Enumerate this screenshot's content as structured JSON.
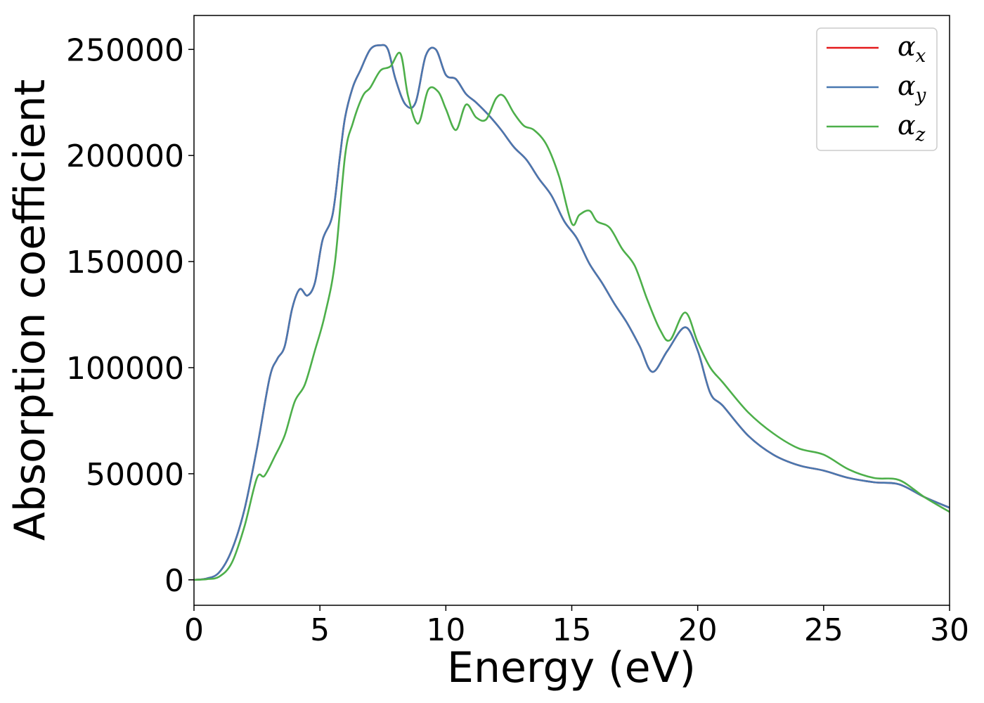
{
  "chart_data": {
    "type": "line",
    "title": "",
    "xlabel": "Energy (eV)",
    "ylabel": "Absorption coefficient",
    "xlim": [
      0,
      30
    ],
    "ylim": [
      -12000,
      266000
    ],
    "xticks": [
      0,
      5,
      10,
      15,
      20,
      25,
      30
    ],
    "xtick_labels": [
      "0",
      "5",
      "10",
      "15",
      "20",
      "25",
      "30"
    ],
    "yticks": [
      0,
      50000,
      100000,
      150000,
      200000,
      250000
    ],
    "ytick_labels": [
      "0",
      "50000",
      "100000",
      "150000",
      "200000",
      "250000"
    ],
    "grid": false,
    "legend_position": "top-right",
    "series": [
      {
        "name": "α_x",
        "symbol": "α",
        "subscript": "x",
        "color": "#e41a1c",
        "x": [
          0,
          0.5,
          1,
          1.5,
          2,
          2.5,
          3,
          3.3,
          3.6,
          3.9,
          4.2,
          4.5,
          4.8,
          5.1,
          5.5,
          5.8,
          6,
          6.3,
          6.6,
          7,
          7.4,
          7.7,
          8,
          8.4,
          8.8,
          9.2,
          9.6,
          10,
          10.4,
          10.8,
          11.2,
          11.7,
          12.2,
          12.7,
          13.2,
          13.7,
          14.2,
          14.7,
          15.2,
          15.7,
          16.2,
          16.7,
          17.2,
          17.7,
          18.2,
          18.8,
          19.5,
          20,
          20.5,
          21,
          22,
          23,
          24,
          25,
          26,
          27,
          28,
          29,
          30
        ],
        "y": [
          0,
          600,
          3500,
          14000,
          33000,
          62000,
          95000,
          104000,
          110000,
          128000,
          137000,
          134000,
          140000,
          160000,
          172000,
          200000,
          218000,
          232000,
          240000,
          250000,
          252000,
          250000,
          236000,
          224000,
          225000,
          247000,
          250000,
          238000,
          236000,
          229000,
          225000,
          219000,
          212000,
          204000,
          198000,
          189000,
          181000,
          169000,
          161000,
          149000,
          140000,
          130000,
          121000,
          110000,
          98000,
          108000,
          119000,
          108000,
          88000,
          82000,
          68000,
          59000,
          54000,
          51500,
          48000,
          46000,
          45000,
          39000,
          34000
        ]
      },
      {
        "name": "α_y",
        "symbol": "α",
        "subscript": "y",
        "color": "#4878b0",
        "x": [
          0,
          0.5,
          1,
          1.5,
          2,
          2.5,
          3,
          3.3,
          3.6,
          3.9,
          4.2,
          4.5,
          4.8,
          5.1,
          5.5,
          5.8,
          6,
          6.3,
          6.6,
          7,
          7.4,
          7.7,
          8,
          8.4,
          8.8,
          9.2,
          9.6,
          10,
          10.4,
          10.8,
          11.2,
          11.7,
          12.2,
          12.7,
          13.2,
          13.7,
          14.2,
          14.7,
          15.2,
          15.7,
          16.2,
          16.7,
          17.2,
          17.7,
          18.2,
          18.8,
          19.5,
          20,
          20.5,
          21,
          22,
          23,
          24,
          25,
          26,
          27,
          28,
          29,
          30
        ],
        "y": [
          0,
          600,
          3500,
          14000,
          33000,
          62000,
          95000,
          104000,
          110000,
          128000,
          137000,
          134000,
          140000,
          160000,
          172000,
          200000,
          218000,
          232000,
          240000,
          250000,
          252000,
          250000,
          236000,
          224000,
          225000,
          247000,
          250000,
          238000,
          236000,
          229000,
          225000,
          219000,
          212000,
          204000,
          198000,
          189000,
          181000,
          169000,
          161000,
          149000,
          140000,
          130000,
          121000,
          110000,
          98000,
          108000,
          119000,
          108000,
          88000,
          82000,
          68000,
          59000,
          54000,
          51500,
          48000,
          46000,
          45000,
          39000,
          34000
        ]
      },
      {
        "name": "α_z",
        "symbol": "α",
        "subscript": "z",
        "color": "#4daf4a",
        "x": [
          0,
          0.5,
          1,
          1.5,
          2,
          2.5,
          2.8,
          3.2,
          3.6,
          4,
          4.4,
          4.8,
          5.2,
          5.6,
          6,
          6.3,
          6.7,
          7,
          7.4,
          7.8,
          8.2,
          8.5,
          8.9,
          9.3,
          9.7,
          10,
          10.4,
          10.8,
          11.2,
          11.6,
          12,
          12.3,
          12.7,
          13.1,
          13.5,
          14,
          14.5,
          15,
          15.3,
          15.7,
          16,
          16.5,
          17,
          17.5,
          18,
          18.5,
          18.9,
          19.5,
          20,
          20.5,
          21,
          22,
          23,
          24,
          25,
          26,
          27,
          28,
          29,
          30
        ],
        "y": [
          0,
          300,
          1500,
          8000,
          25000,
          48000,
          49000,
          58000,
          68000,
          84000,
          92000,
          108000,
          125000,
          150000,
          200000,
          215000,
          228000,
          232000,
          240000,
          242000,
          248000,
          228000,
          215000,
          231000,
          230000,
          222000,
          212000,
          224000,
          218000,
          217000,
          227000,
          228000,
          220000,
          214000,
          212000,
          205000,
          190000,
          168000,
          172000,
          174000,
          169000,
          166000,
          156000,
          148000,
          132000,
          118000,
          113000,
          126000,
          112000,
          100000,
          93000,
          79000,
          69000,
          62000,
          59000,
          52000,
          48000,
          47000,
          39000,
          32000
        ]
      }
    ]
  }
}
